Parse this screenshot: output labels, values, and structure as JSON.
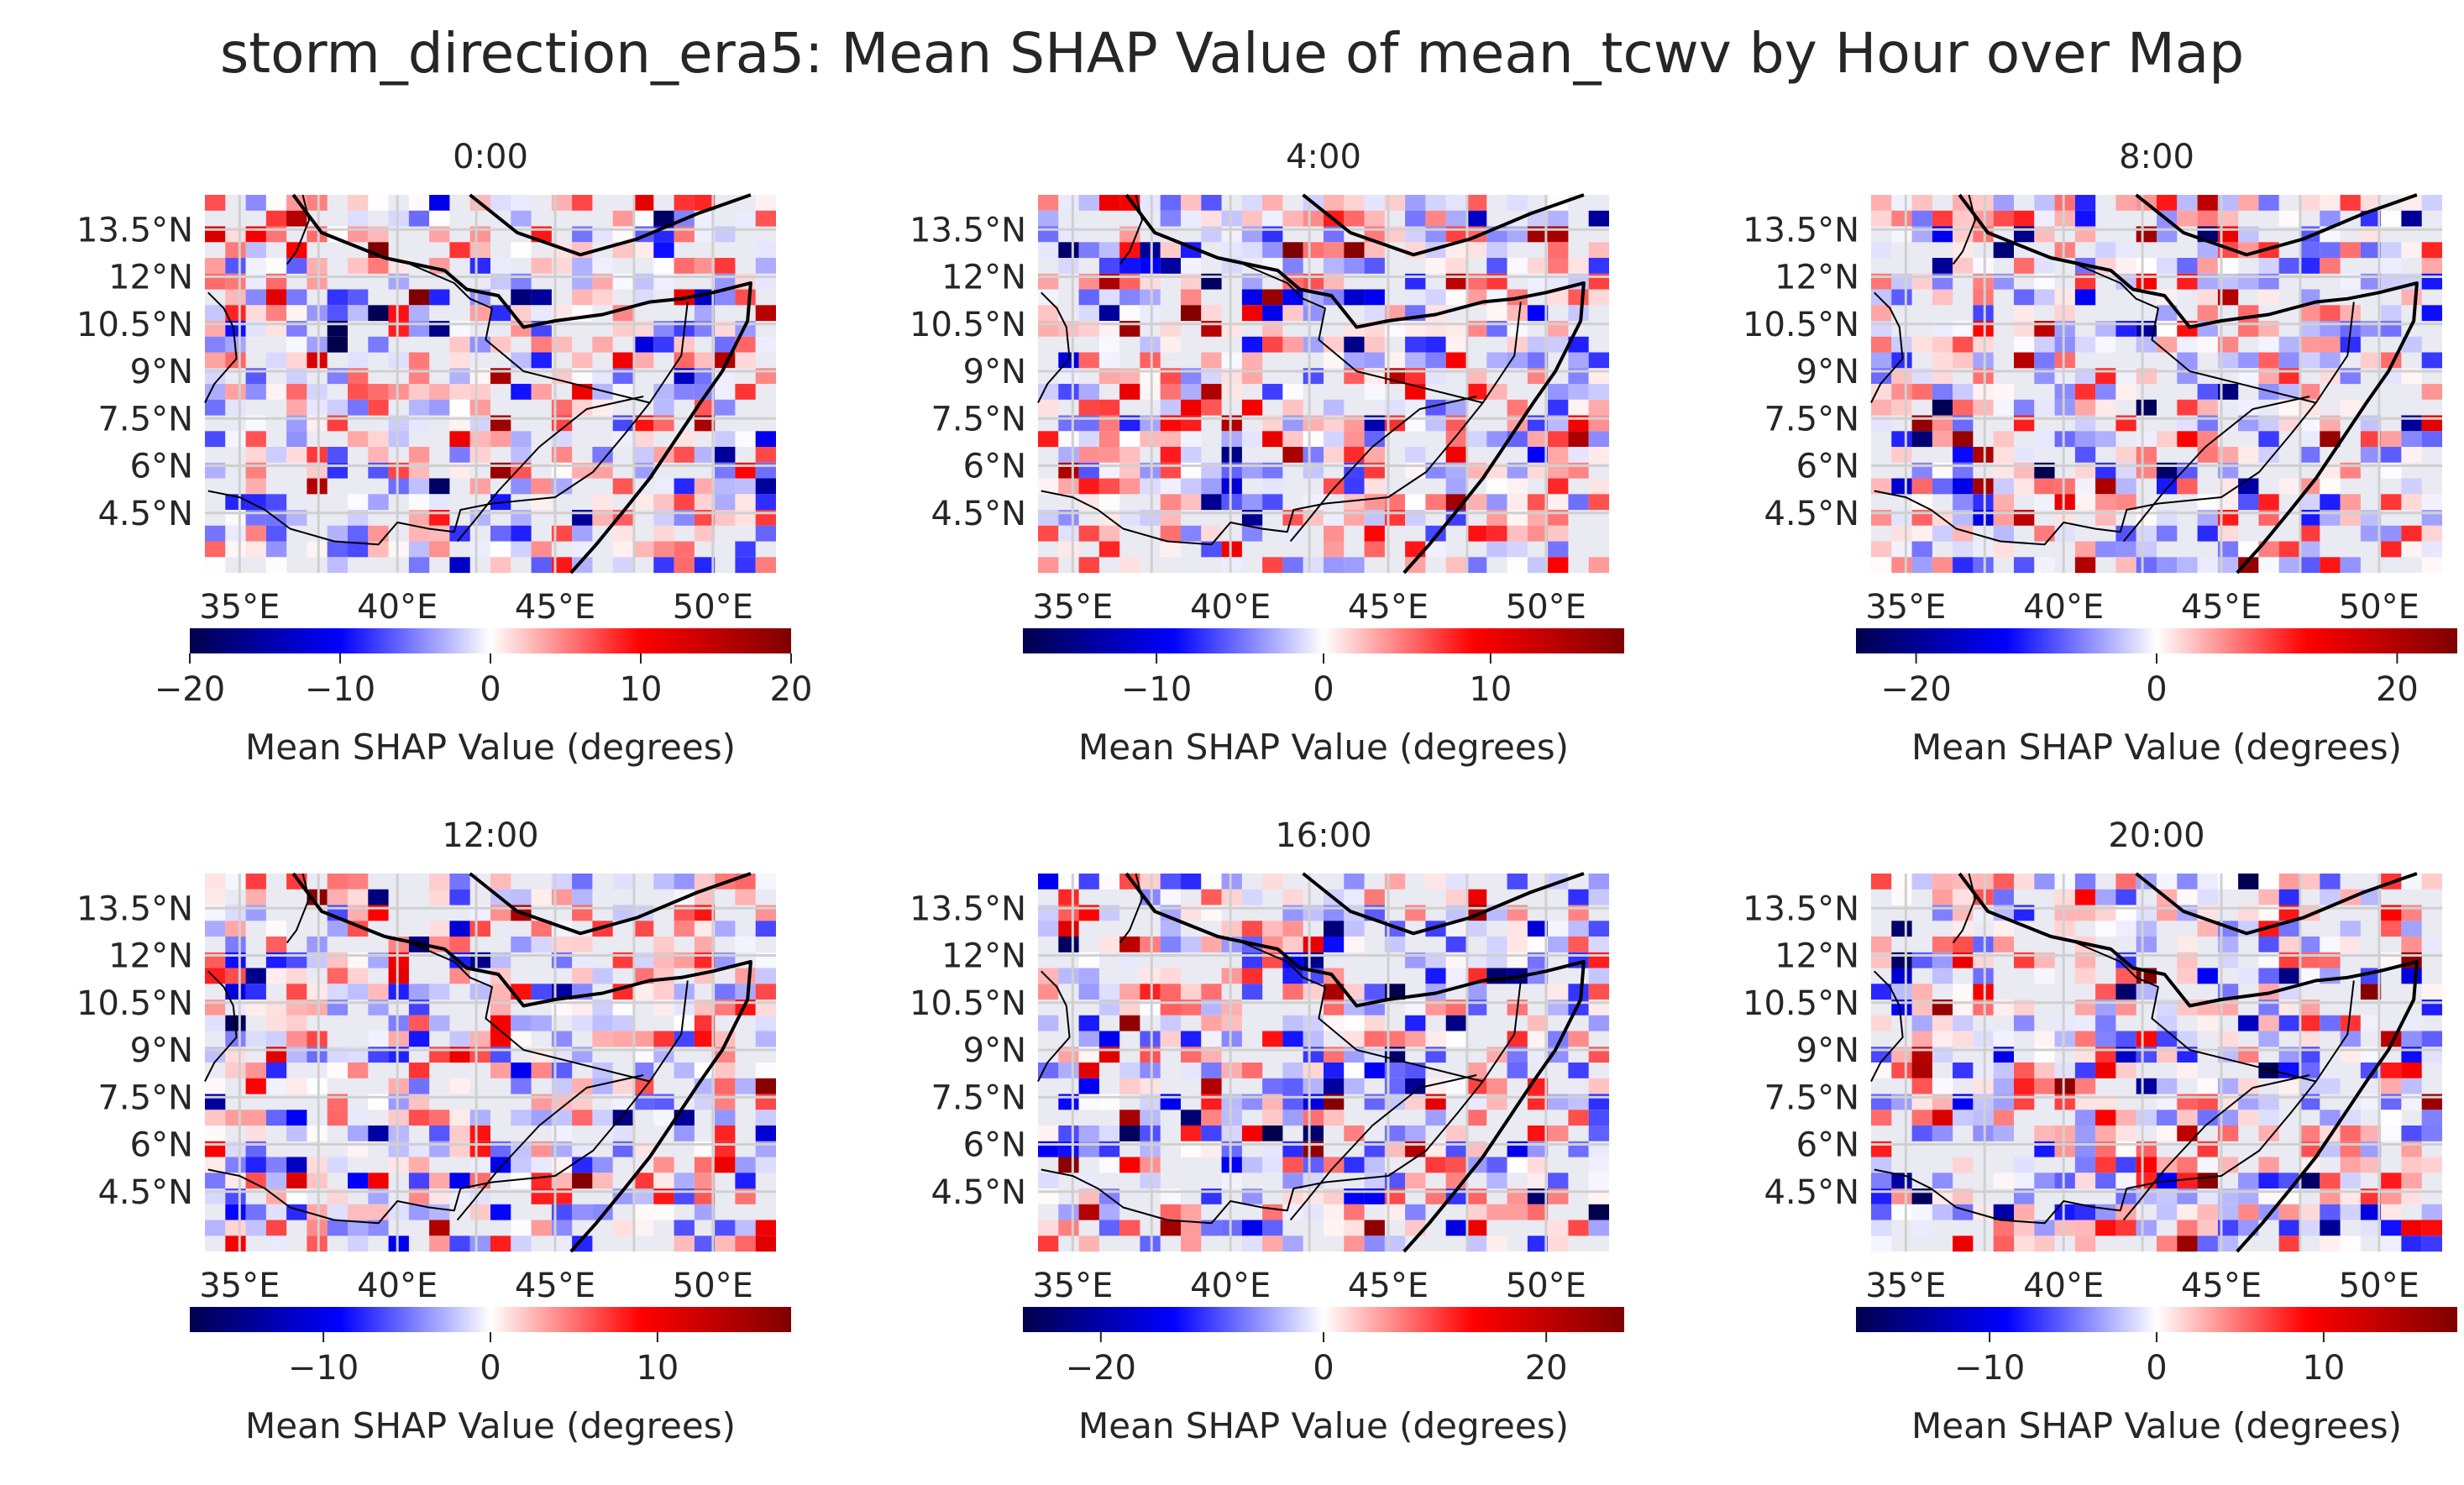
{
  "title": "storm_direction_era5: Mean SHAP Value of mean_tcwv by Hour over Map",
  "colors": {
    "background": "#eaeaf2",
    "grid": "#d0d0d0",
    "coast": "#000000",
    "cmap": [
      "#00004c",
      "#0000ff",
      "#ffffff",
      "#ff0000",
      "#7f0000"
    ]
  },
  "chart_data": [
    {
      "type": "heatmap",
      "title": "0:00",
      "xlabel": "",
      "ylabel": "",
      "x_ticks": [
        "35°E",
        "40°E",
        "45°E",
        "50°E"
      ],
      "y_ticks": [
        "13.5°N",
        "12°N",
        "10.5°N",
        "9°N",
        "7.5°N",
        "6°N",
        "4.5°N"
      ],
      "colorbar": {
        "range": [
          -20,
          20
        ],
        "ticks": [
          "−20",
          "−10",
          "0",
          "10",
          "20"
        ],
        "tick_values": [
          -20,
          -10,
          0,
          10,
          20
        ],
        "label": "Mean SHAP Value (degrees)"
      }
    },
    {
      "type": "heatmap",
      "title": "4:00",
      "xlabel": "",
      "ylabel": "",
      "x_ticks": [
        "35°E",
        "40°E",
        "45°E",
        "50°E"
      ],
      "y_ticks": [
        "13.5°N",
        "12°N",
        "10.5°N",
        "9°N",
        "7.5°N",
        "6°N",
        "4.5°N"
      ],
      "colorbar": {
        "range": [
          -18,
          18
        ],
        "ticks": [
          "−10",
          "0",
          "10"
        ],
        "tick_values": [
          -10,
          0,
          10
        ],
        "label": "Mean SHAP Value (degrees)"
      }
    },
    {
      "type": "heatmap",
      "title": "8:00",
      "xlabel": "",
      "ylabel": "",
      "x_ticks": [
        "35°E",
        "40°E",
        "45°E",
        "50°E"
      ],
      "y_ticks": [
        "13.5°N",
        "12°N",
        "10.5°N",
        "9°N",
        "7.5°N",
        "6°N",
        "4.5°N"
      ],
      "colorbar": {
        "range": [
          -25,
          25
        ],
        "ticks": [
          "−20",
          "0",
          "20"
        ],
        "tick_values": [
          -20,
          0,
          20
        ],
        "label": "Mean SHAP Value (degrees)"
      }
    },
    {
      "type": "heatmap",
      "title": "12:00",
      "xlabel": "",
      "ylabel": "",
      "x_ticks": [
        "35°E",
        "40°E",
        "45°E",
        "50°E"
      ],
      "y_ticks": [
        "13.5°N",
        "12°N",
        "10.5°N",
        "9°N",
        "7.5°N",
        "6°N",
        "4.5°N"
      ],
      "colorbar": {
        "range": [
          -18,
          18
        ],
        "ticks": [
          "−10",
          "0",
          "10"
        ],
        "tick_values": [
          -10,
          0,
          10
        ],
        "label": "Mean SHAP Value (degrees)"
      }
    },
    {
      "type": "heatmap",
      "title": "16:00",
      "xlabel": "",
      "ylabel": "",
      "x_ticks": [
        "35°E",
        "40°E",
        "45°E",
        "50°E"
      ],
      "y_ticks": [
        "13.5°N",
        "12°N",
        "10.5°N",
        "9°N",
        "7.5°N",
        "6°N",
        "4.5°N"
      ],
      "colorbar": {
        "range": [
          -27,
          27
        ],
        "ticks": [
          "−20",
          "0",
          "20"
        ],
        "tick_values": [
          -20,
          0,
          20
        ],
        "label": "Mean SHAP Value (degrees)"
      }
    },
    {
      "type": "heatmap",
      "title": "20:00",
      "xlabel": "",
      "ylabel": "",
      "x_ticks": [
        "35°E",
        "40°E",
        "45°E",
        "50°E"
      ],
      "y_ticks": [
        "13.5°N",
        "12°N",
        "10.5°N",
        "9°N",
        "7.5°N",
        "6°N",
        "4.5°N"
      ],
      "colorbar": {
        "range": [
          -18,
          18
        ],
        "ticks": [
          "−10",
          "0",
          "10"
        ],
        "tick_values": [
          -10,
          0,
          10
        ],
        "label": "Mean SHAP Value (degrees)"
      }
    }
  ]
}
